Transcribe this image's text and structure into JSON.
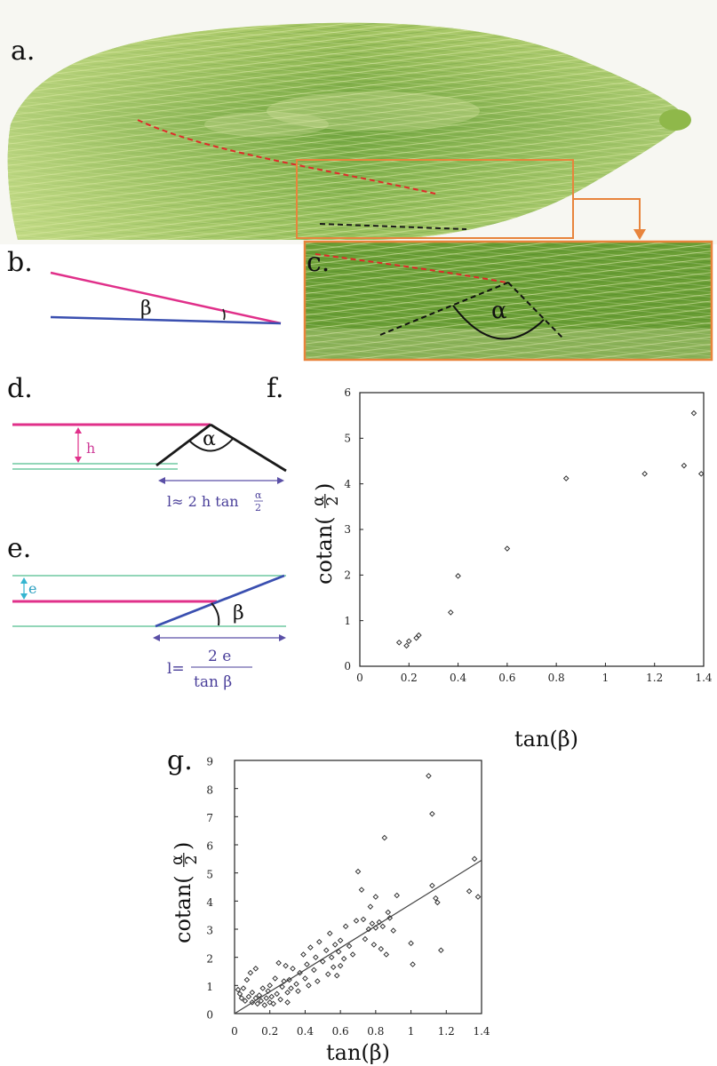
{
  "figure": {
    "panels": {
      "a": "a.",
      "b": "b.",
      "c": "c.",
      "d": "d.",
      "e": "e.",
      "f": "f.",
      "g": "g."
    },
    "panel_b": {
      "angle_symbol": "β",
      "upper_color": "#e0308a",
      "lower_color": "#3a4fb0"
    },
    "panel_c": {
      "angle_symbol": "α"
    },
    "panel_d": {
      "angle_symbol": "α",
      "gap_label": "h",
      "formula_prefix": "l≈ 2 h tan",
      "formula_frac_num": "α",
      "formula_frac_den": "2"
    },
    "panel_e": {
      "angle_symbol": "β",
      "gap_label": "e",
      "formula_lhs": "l=",
      "formula_num": "2 e",
      "formula_den": "tan β"
    },
    "colors": {
      "magenta": "#e0308a",
      "blue": "#3a4fb0",
      "green": "#6fc9a0",
      "cyan": "#35b5d0",
      "purple": "#5a4fa6",
      "orange": "#e8843c",
      "leaf_dark": "#4f8a2a",
      "leaf_light": "#b8d27a"
    }
  },
  "chart_data": [
    {
      "id": "f",
      "type": "scatter",
      "xlabel": "tan(β)",
      "ylabel_prefix": "cotan(",
      "ylabel_frac_num": "α",
      "ylabel_frac_den": "2",
      "ylabel_suffix": ")",
      "xlim": [
        0,
        1.4
      ],
      "ylim": [
        0,
        6
      ],
      "xticks": [
        "0",
        "0.2",
        "0.4",
        "0.6",
        "0.8",
        "1",
        "1.2",
        "1.4"
      ],
      "yticks": [
        "0",
        "1",
        "2",
        "3",
        "4",
        "5",
        "6"
      ],
      "xtick_values": [
        0,
        0.2,
        0.4,
        0.6,
        0.8,
        1.0,
        1.2,
        1.4
      ],
      "ytick_values": [
        0,
        1,
        2,
        3,
        4,
        5,
        6
      ],
      "series": [
        {
          "points": [
            [
              0.16,
              0.52
            ],
            [
              0.19,
              0.45
            ],
            [
              0.2,
              0.55
            ],
            [
              0.23,
              0.62
            ],
            [
              0.24,
              0.68
            ],
            [
              0.37,
              1.18
            ],
            [
              0.4,
              1.98
            ],
            [
              0.6,
              2.58
            ],
            [
              0.84,
              4.12
            ],
            [
              1.16,
              4.22
            ],
            [
              1.32,
              4.4
            ],
            [
              1.36,
              5.55
            ],
            [
              1.39,
              4.22
            ]
          ]
        }
      ],
      "fit_line": null
    },
    {
      "id": "g",
      "type": "scatter",
      "xlabel": "tan(β)",
      "ylabel_prefix": "cotan(",
      "ylabel_frac_num": "α",
      "ylabel_frac_den": "2",
      "ylabel_suffix": ")",
      "xlim": [
        0,
        1.4
      ],
      "ylim": [
        0,
        9
      ],
      "xticks": [
        "0",
        "0.2",
        "0.4",
        "0.6",
        "0.8",
        "1",
        "1.2",
        "1.4"
      ],
      "yticks": [
        "0",
        "1",
        "2",
        "3",
        "4",
        "5",
        "6",
        "7",
        "8",
        "9"
      ],
      "xtick_values": [
        0,
        0.2,
        0.4,
        0.6,
        0.8,
        1.0,
        1.2,
        1.4
      ],
      "ytick_values": [
        0,
        1,
        2,
        3,
        4,
        5,
        6,
        7,
        8,
        9
      ],
      "series": [
        {
          "points": [
            [
              0.02,
              0.85
            ],
            [
              0.03,
              0.7
            ],
            [
              0.04,
              0.55
            ],
            [
              0.05,
              0.9
            ],
            [
              0.06,
              0.45
            ],
            [
              0.07,
              1.2
            ],
            [
              0.08,
              0.6
            ],
            [
              0.09,
              1.45
            ],
            [
              0.1,
              0.4
            ],
            [
              0.1,
              0.75
            ],
            [
              0.12,
              0.55
            ],
            [
              0.12,
              1.6
            ],
            [
              0.13,
              0.35
            ],
            [
              0.14,
              0.65
            ],
            [
              0.15,
              0.45
            ],
            [
              0.16,
              0.9
            ],
            [
              0.17,
              0.3
            ],
            [
              0.18,
              0.55
            ],
            [
              0.19,
              0.8
            ],
            [
              0.2,
              0.4
            ],
            [
              0.2,
              1.0
            ],
            [
              0.21,
              0.6
            ],
            [
              0.22,
              0.35
            ],
            [
              0.23,
              1.25
            ],
            [
              0.24,
              0.7
            ],
            [
              0.25,
              1.8
            ],
            [
              0.26,
              0.5
            ],
            [
              0.27,
              0.95
            ],
            [
              0.28,
              1.15
            ],
            [
              0.29,
              1.7
            ],
            [
              0.3,
              0.4
            ],
            [
              0.3,
              0.75
            ],
            [
              0.31,
              1.2
            ],
            [
              0.32,
              0.9
            ],
            [
              0.33,
              1.6
            ],
            [
              0.35,
              1.05
            ],
            [
              0.36,
              0.8
            ],
            [
              0.37,
              1.45
            ],
            [
              0.39,
              2.1
            ],
            [
              0.4,
              1.25
            ],
            [
              0.41,
              1.75
            ],
            [
              0.42,
              1.0
            ],
            [
              0.43,
              2.35
            ],
            [
              0.45,
              1.55
            ],
            [
              0.46,
              2.0
            ],
            [
              0.47,
              1.15
            ],
            [
              0.48,
              2.55
            ],
            [
              0.5,
              1.85
            ],
            [
              0.52,
              2.25
            ],
            [
              0.53,
              1.4
            ],
            [
              0.54,
              2.85
            ],
            [
              0.55,
              2.0
            ],
            [
              0.56,
              1.65
            ],
            [
              0.57,
              2.45
            ],
            [
              0.58,
              1.35
            ],
            [
              0.59,
              2.2
            ],
            [
              0.6,
              1.7
            ],
            [
              0.6,
              2.6
            ],
            [
              0.62,
              1.95
            ],
            [
              0.63,
              3.1
            ],
            [
              0.65,
              2.4
            ],
            [
              0.67,
              2.1
            ],
            [
              0.69,
              3.3
            ],
            [
              0.7,
              5.05
            ],
            [
              0.72,
              4.4
            ],
            [
              0.73,
              3.35
            ],
            [
              0.74,
              2.65
            ],
            [
              0.76,
              3.0
            ],
            [
              0.77,
              3.8
            ],
            [
              0.78,
              3.2
            ],
            [
              0.79,
              2.45
            ],
            [
              0.8,
              4.15
            ],
            [
              0.8,
              3.05
            ],
            [
              0.82,
              3.25
            ],
            [
              0.83,
              2.3
            ],
            [
              0.84,
              3.1
            ],
            [
              0.85,
              6.25
            ],
            [
              0.86,
              2.1
            ],
            [
              0.87,
              3.6
            ],
            [
              0.88,
              3.4
            ],
            [
              0.9,
              2.95
            ],
            [
              0.92,
              4.2
            ],
            [
              1.0,
              2.5
            ],
            [
              1.01,
              1.75
            ],
            [
              1.1,
              8.45
            ],
            [
              1.12,
              7.1
            ],
            [
              1.12,
              4.55
            ],
            [
              1.14,
              4.1
            ],
            [
              1.15,
              3.95
            ],
            [
              1.17,
              2.25
            ],
            [
              1.33,
              4.35
            ],
            [
              1.36,
              5.5
            ],
            [
              1.38,
              4.15
            ]
          ]
        }
      ],
      "fit_line": {
        "x": [
          0,
          1.4
        ],
        "y": [
          0.0,
          5.45
        ]
      }
    }
  ]
}
